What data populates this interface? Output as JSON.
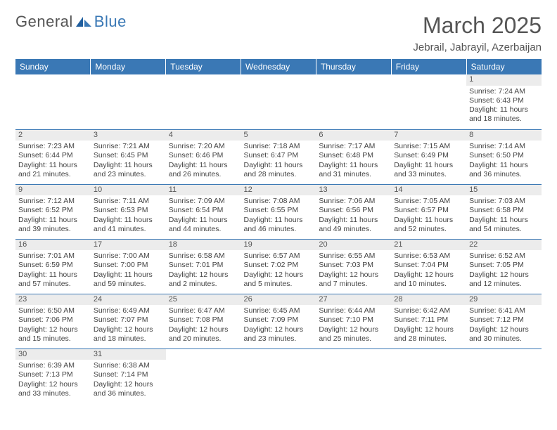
{
  "logo": {
    "word1": "General",
    "word2": "Blue"
  },
  "title": {
    "month": "March 2025",
    "location": "Jebrail, Jabrayil, Azerbaijan"
  },
  "colors": {
    "header_bg": "#3a78b5",
    "header_fg": "#ffffff",
    "daynum_bg": "#ececec",
    "rule": "#3a78b5"
  },
  "weekdays": [
    "Sunday",
    "Monday",
    "Tuesday",
    "Wednesday",
    "Thursday",
    "Friday",
    "Saturday"
  ],
  "weeks": [
    [
      {
        "n": "",
        "sr": "",
        "ss": "",
        "dl": ""
      },
      {
        "n": "",
        "sr": "",
        "ss": "",
        "dl": ""
      },
      {
        "n": "",
        "sr": "",
        "ss": "",
        "dl": ""
      },
      {
        "n": "",
        "sr": "",
        "ss": "",
        "dl": ""
      },
      {
        "n": "",
        "sr": "",
        "ss": "",
        "dl": ""
      },
      {
        "n": "",
        "sr": "",
        "ss": "",
        "dl": ""
      },
      {
        "n": "1",
        "sr": "Sunrise: 7:24 AM",
        "ss": "Sunset: 6:43 PM",
        "dl": "Daylight: 11 hours and 18 minutes."
      }
    ],
    [
      {
        "n": "2",
        "sr": "Sunrise: 7:23 AM",
        "ss": "Sunset: 6:44 PM",
        "dl": "Daylight: 11 hours and 21 minutes."
      },
      {
        "n": "3",
        "sr": "Sunrise: 7:21 AM",
        "ss": "Sunset: 6:45 PM",
        "dl": "Daylight: 11 hours and 23 minutes."
      },
      {
        "n": "4",
        "sr": "Sunrise: 7:20 AM",
        "ss": "Sunset: 6:46 PM",
        "dl": "Daylight: 11 hours and 26 minutes."
      },
      {
        "n": "5",
        "sr": "Sunrise: 7:18 AM",
        "ss": "Sunset: 6:47 PM",
        "dl": "Daylight: 11 hours and 28 minutes."
      },
      {
        "n": "6",
        "sr": "Sunrise: 7:17 AM",
        "ss": "Sunset: 6:48 PM",
        "dl": "Daylight: 11 hours and 31 minutes."
      },
      {
        "n": "7",
        "sr": "Sunrise: 7:15 AM",
        "ss": "Sunset: 6:49 PM",
        "dl": "Daylight: 11 hours and 33 minutes."
      },
      {
        "n": "8",
        "sr": "Sunrise: 7:14 AM",
        "ss": "Sunset: 6:50 PM",
        "dl": "Daylight: 11 hours and 36 minutes."
      }
    ],
    [
      {
        "n": "9",
        "sr": "Sunrise: 7:12 AM",
        "ss": "Sunset: 6:52 PM",
        "dl": "Daylight: 11 hours and 39 minutes."
      },
      {
        "n": "10",
        "sr": "Sunrise: 7:11 AM",
        "ss": "Sunset: 6:53 PM",
        "dl": "Daylight: 11 hours and 41 minutes."
      },
      {
        "n": "11",
        "sr": "Sunrise: 7:09 AM",
        "ss": "Sunset: 6:54 PM",
        "dl": "Daylight: 11 hours and 44 minutes."
      },
      {
        "n": "12",
        "sr": "Sunrise: 7:08 AM",
        "ss": "Sunset: 6:55 PM",
        "dl": "Daylight: 11 hours and 46 minutes."
      },
      {
        "n": "13",
        "sr": "Sunrise: 7:06 AM",
        "ss": "Sunset: 6:56 PM",
        "dl": "Daylight: 11 hours and 49 minutes."
      },
      {
        "n": "14",
        "sr": "Sunrise: 7:05 AM",
        "ss": "Sunset: 6:57 PM",
        "dl": "Daylight: 11 hours and 52 minutes."
      },
      {
        "n": "15",
        "sr": "Sunrise: 7:03 AM",
        "ss": "Sunset: 6:58 PM",
        "dl": "Daylight: 11 hours and 54 minutes."
      }
    ],
    [
      {
        "n": "16",
        "sr": "Sunrise: 7:01 AM",
        "ss": "Sunset: 6:59 PM",
        "dl": "Daylight: 11 hours and 57 minutes."
      },
      {
        "n": "17",
        "sr": "Sunrise: 7:00 AM",
        "ss": "Sunset: 7:00 PM",
        "dl": "Daylight: 11 hours and 59 minutes."
      },
      {
        "n": "18",
        "sr": "Sunrise: 6:58 AM",
        "ss": "Sunset: 7:01 PM",
        "dl": "Daylight: 12 hours and 2 minutes."
      },
      {
        "n": "19",
        "sr": "Sunrise: 6:57 AM",
        "ss": "Sunset: 7:02 PM",
        "dl": "Daylight: 12 hours and 5 minutes."
      },
      {
        "n": "20",
        "sr": "Sunrise: 6:55 AM",
        "ss": "Sunset: 7:03 PM",
        "dl": "Daylight: 12 hours and 7 minutes."
      },
      {
        "n": "21",
        "sr": "Sunrise: 6:53 AM",
        "ss": "Sunset: 7:04 PM",
        "dl": "Daylight: 12 hours and 10 minutes."
      },
      {
        "n": "22",
        "sr": "Sunrise: 6:52 AM",
        "ss": "Sunset: 7:05 PM",
        "dl": "Daylight: 12 hours and 12 minutes."
      }
    ],
    [
      {
        "n": "23",
        "sr": "Sunrise: 6:50 AM",
        "ss": "Sunset: 7:06 PM",
        "dl": "Daylight: 12 hours and 15 minutes."
      },
      {
        "n": "24",
        "sr": "Sunrise: 6:49 AM",
        "ss": "Sunset: 7:07 PM",
        "dl": "Daylight: 12 hours and 18 minutes."
      },
      {
        "n": "25",
        "sr": "Sunrise: 6:47 AM",
        "ss": "Sunset: 7:08 PM",
        "dl": "Daylight: 12 hours and 20 minutes."
      },
      {
        "n": "26",
        "sr": "Sunrise: 6:45 AM",
        "ss": "Sunset: 7:09 PM",
        "dl": "Daylight: 12 hours and 23 minutes."
      },
      {
        "n": "27",
        "sr": "Sunrise: 6:44 AM",
        "ss": "Sunset: 7:10 PM",
        "dl": "Daylight: 12 hours and 25 minutes."
      },
      {
        "n": "28",
        "sr": "Sunrise: 6:42 AM",
        "ss": "Sunset: 7:11 PM",
        "dl": "Daylight: 12 hours and 28 minutes."
      },
      {
        "n": "29",
        "sr": "Sunrise: 6:41 AM",
        "ss": "Sunset: 7:12 PM",
        "dl": "Daylight: 12 hours and 30 minutes."
      }
    ],
    [
      {
        "n": "30",
        "sr": "Sunrise: 6:39 AM",
        "ss": "Sunset: 7:13 PM",
        "dl": "Daylight: 12 hours and 33 minutes."
      },
      {
        "n": "31",
        "sr": "Sunrise: 6:38 AM",
        "ss": "Sunset: 7:14 PM",
        "dl": "Daylight: 12 hours and 36 minutes."
      },
      {
        "n": "",
        "sr": "",
        "ss": "",
        "dl": ""
      },
      {
        "n": "",
        "sr": "",
        "ss": "",
        "dl": ""
      },
      {
        "n": "",
        "sr": "",
        "ss": "",
        "dl": ""
      },
      {
        "n": "",
        "sr": "",
        "ss": "",
        "dl": ""
      },
      {
        "n": "",
        "sr": "",
        "ss": "",
        "dl": ""
      }
    ]
  ]
}
